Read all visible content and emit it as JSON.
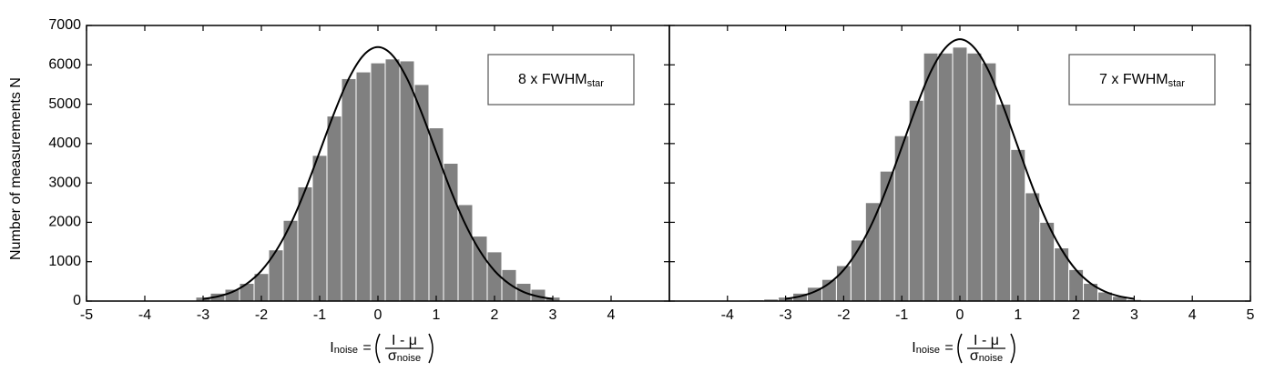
{
  "chart_data": [
    {
      "type": "histogram",
      "ylabel": "Number of measurements N",
      "legend": {
        "text": "8 x FWHM",
        "sub": "star"
      },
      "xlabel": {
        "symbol": "I",
        "sub": "noise",
        "equals": "=",
        "numerator": "I - μ",
        "denominator": "σ",
        "denominator_sub": "noise"
      },
      "bins": [
        -3.125,
        -2.875,
        -2.625,
        -2.375,
        -2.125,
        -1.875,
        -1.625,
        -1.375,
        -1.125,
        -0.875,
        -0.625,
        -0.375,
        -0.125,
        0.125,
        0.375,
        0.625,
        0.875,
        1.125,
        1.375,
        1.625,
        1.875,
        2.125,
        2.375,
        2.625,
        2.875,
        3.125
      ],
      "values": [
        100,
        200,
        300,
        450,
        700,
        1300,
        2050,
        2900,
        3700,
        4700,
        5650,
        5820,
        6050,
        6150,
        6100,
        5500,
        4400,
        3500,
        2450,
        1650,
        1250,
        800,
        450,
        300,
        100
      ],
      "color": "#808080",
      "curve": {
        "color": "#000000",
        "x": [
          -3,
          -2.75,
          -2.5,
          -2.25,
          -2,
          -1.75,
          -1.5,
          -1.25,
          -1,
          -0.75,
          -0.5,
          -0.25,
          0,
          0.25,
          0.5,
          0.75,
          1,
          1.25,
          1.5,
          1.75,
          2,
          2.25,
          2.5,
          2.75,
          3
        ],
        "y": [
          54,
          116,
          230,
          440,
          770,
          1270,
          1950,
          2810,
          3790,
          4780,
          5650,
          6240,
          6450,
          6240,
          5650,
          4780,
          3790,
          2810,
          1950,
          1270,
          770,
          440,
          230,
          116,
          54
        ]
      },
      "xlim": [
        -5,
        5
      ],
      "xticks": [
        -5,
        -4,
        -3,
        -2,
        -1,
        0,
        1,
        2,
        3,
        4
      ],
      "ylim": [
        0,
        7000
      ],
      "yticks": [
        0,
        1000,
        2000,
        3000,
        4000,
        5000,
        6000,
        7000
      ],
      "show_ytick_labels": true
    },
    {
      "type": "histogram",
      "legend": {
        "text": "7 x FWHM",
        "sub": "star"
      },
      "xlabel": {
        "symbol": "I",
        "sub": "noise",
        "equals": "=",
        "numerator": "I - μ",
        "denominator": "σ",
        "denominator_sub": "noise"
      },
      "bins": [
        -3.625,
        -3.375,
        -3.125,
        -2.875,
        -2.625,
        -2.375,
        -2.125,
        -1.875,
        -1.625,
        -1.375,
        -1.125,
        -0.875,
        -0.625,
        -0.375,
        -0.125,
        0.125,
        0.375,
        0.625,
        0.875,
        1.125,
        1.375,
        1.625,
        1.875,
        2.125,
        2.375,
        2.625,
        2.875,
        3.125
      ],
      "values": [
        30,
        50,
        100,
        200,
        350,
        550,
        900,
        1550,
        2500,
        3300,
        4200,
        5100,
        6300,
        6300,
        6450,
        6300,
        6050,
        5000,
        3850,
        2750,
        2000,
        1350,
        800,
        450,
        230,
        120,
        40
      ],
      "color": "#808080",
      "curve": {
        "color": "#000000",
        "x": [
          -3,
          -2.75,
          -2.5,
          -2.25,
          -2,
          -1.75,
          -1.5,
          -1.25,
          -1,
          -0.75,
          -0.5,
          -0.25,
          0,
          0.25,
          0.5,
          0.75,
          1,
          1.25,
          1.5,
          1.75,
          2,
          2.25,
          2.5,
          2.75,
          3
        ],
        "y": [
          56,
          120,
          240,
          450,
          790,
          1310,
          2010,
          2900,
          3910,
          4930,
          5830,
          6430,
          6650,
          6430,
          5830,
          4930,
          3910,
          2900,
          2010,
          1310,
          790,
          450,
          240,
          120,
          56
        ]
      },
      "xlim": [
        -5,
        5
      ],
      "xticks": [
        -4,
        -3,
        -2,
        -1,
        0,
        1,
        2,
        3,
        4,
        5
      ],
      "ylim": [
        0,
        7000
      ],
      "yticks": [
        0,
        1000,
        2000,
        3000,
        4000,
        5000,
        6000,
        7000
      ],
      "show_ytick_labels": false
    }
  ]
}
